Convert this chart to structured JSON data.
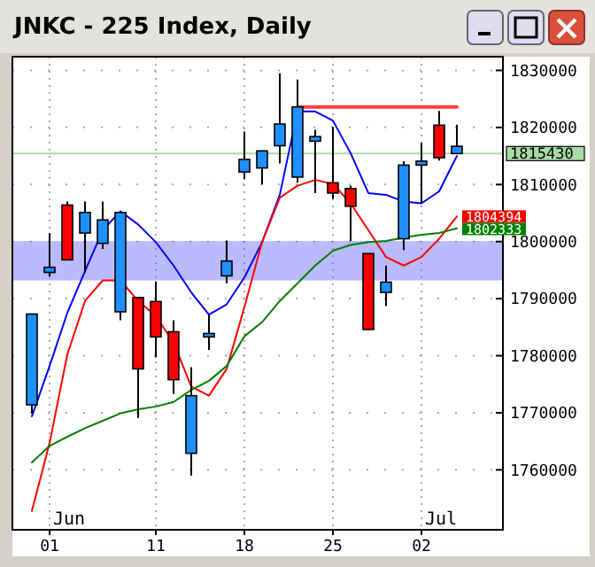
{
  "chart_data": {
    "type": "candlestick",
    "title": "JNKC - 225 Index, Daily",
    "categories": [
      null,
      "01",
      null,
      null,
      null,
      null,
      null,
      "11",
      null,
      null,
      null,
      null,
      "18",
      null,
      null,
      null,
      null,
      "25",
      null,
      null,
      null,
      null,
      "02",
      null,
      null
    ],
    "ohlc": [
      [
        1787300,
        1787300,
        1769900,
        1771400
      ],
      [
        1795500,
        1801500,
        1793900,
        1794600
      ],
      [
        1796800,
        1807000,
        1796800,
        1806400
      ],
      [
        1805100,
        1807000,
        1794600,
        1801500
      ],
      [
        1803800,
        1807000,
        1798700,
        1799700
      ],
      [
        1805100,
        1805300,
        1786200,
        1787700
      ],
      [
        1777700,
        1790200,
        1769100,
        1790200
      ],
      [
        1783300,
        1793000,
        1779700,
        1789500
      ],
      [
        1775800,
        1786200,
        1773300,
        1784200
      ],
      [
        1773000,
        1778000,
        1759000,
        1762900
      ],
      [
        1783900,
        1787200,
        1781000,
        1783300
      ],
      [
        1796600,
        1800200,
        1792700,
        1794000
      ],
      [
        1814400,
        1819300,
        1810900,
        1812200
      ],
      [
        1815900,
        1815900,
        1810000,
        1812900
      ],
      [
        1820600,
        1829500,
        1813700,
        1816800
      ],
      [
        1823600,
        1828400,
        1810300,
        1811300
      ],
      [
        1818400,
        1819600,
        1808500,
        1817600
      ],
      [
        1808500,
        1820100,
        1807500,
        1810300
      ],
      [
        1806200,
        1809800,
        1800100,
        1809300
      ],
      [
        1784600,
        1797900,
        1784600,
        1797900
      ],
      [
        1792900,
        1795800,
        1788700,
        1791100
      ],
      [
        1813400,
        1814100,
        1798500,
        1800500
      ],
      [
        1814100,
        1817300,
        1806700,
        1813400
      ],
      [
        1814700,
        1822900,
        1814200,
        1820400
      ],
      [
        1816700,
        1820500,
        1815400,
        1815430
      ]
    ],
    "colors": [
      "#1e90ff",
      "#1e90ff",
      "#ff0000",
      "#1e90ff",
      "#1e90ff",
      "#1e90ff",
      "#ff0000",
      "#ff0000",
      "#ff0000",
      "#1e90ff",
      "#1e90ff",
      "#1e90ff",
      "#1e90ff",
      "#1e90ff",
      "#1e90ff",
      "#1e90ff",
      "#1e90ff",
      "#ff0000",
      "#ff0000",
      "#ff0000",
      "#1e90ff",
      "#1e90ff",
      "#1e90ff",
      "#ff0000",
      "#1e90ff"
    ],
    "series": [
      {
        "type": "line",
        "color": "#0000ff",
        "values": [
          1769400,
          1778200,
          1787500,
          1794800,
          1802000,
          1805300,
          1803000,
          1799900,
          1795800,
          1791100,
          1787200,
          1789000,
          1793700,
          1799900,
          1808200,
          1822800,
          1822800,
          1821200,
          1815500,
          1808500,
          1808200,
          1807000,
          1806700,
          1808800,
          1815000
        ]
      },
      {
        "type": "line",
        "color": "#ff0000",
        "values": [
          1752800,
          1764700,
          1780200,
          1789600,
          1793200,
          1793200,
          1789600,
          1787000,
          1782300,
          1774600,
          1773000,
          1777700,
          1788500,
          1799900,
          1807700,
          1809800,
          1810800,
          1810100,
          1806700,
          1802000,
          1797300,
          1795800,
          1797300,
          1800500,
          1804394
        ],
        "value_labels": [
          null,
          null,
          null,
          null,
          null,
          null,
          null,
          null,
          null,
          null,
          null,
          null,
          null,
          null,
          null,
          null,
          null,
          null,
          null,
          null,
          null,
          null,
          null,
          null,
          "1804394"
        ]
      },
      {
        "type": "line",
        "color": "#008000",
        "values": [
          1761300,
          1764200,
          1765800,
          1767300,
          1768600,
          1769900,
          1770600,
          1771100,
          1771900,
          1774000,
          1775600,
          1778200,
          1783400,
          1785900,
          1789600,
          1792700,
          1795800,
          1798400,
          1799400,
          1799900,
          1800100,
          1800700,
          1801200,
          1801500,
          1802333
        ],
        "value_labels": [
          null,
          null,
          null,
          null,
          null,
          null,
          null,
          null,
          null,
          null,
          null,
          null,
          null,
          null,
          null,
          null,
          null,
          null,
          null,
          null,
          null,
          null,
          null,
          null,
          "1802333"
        ]
      },
      {
        "type": "line",
        "color": "#ff4040",
        "values": [
          null,
          null,
          null,
          null,
          null,
          null,
          null,
          null,
          null,
          null,
          null,
          null,
          null,
          null,
          null,
          1823600,
          1823600,
          1823600,
          1823600,
          1823600,
          1823600,
          1823600,
          1823600,
          1823600,
          1823600
        ]
      }
    ],
    "ylim": [
      1749500,
      1832400
    ],
    "yticks": [
      1760000,
      1770000,
      1780000,
      1790000,
      1800000,
      1810000,
      1820000,
      1830000
    ],
    "grid": true,
    "ref_lines": [
      {
        "axis": "y",
        "value": 1815430,
        "label": "1815430",
        "color": "#a8dca8"
      }
    ],
    "bands": [
      {
        "axis": "y",
        "from": 1793200,
        "to": 1800100,
        "color": "#6666ff"
      }
    ],
    "annotations": [
      "Jun",
      "Jul"
    ]
  }
}
